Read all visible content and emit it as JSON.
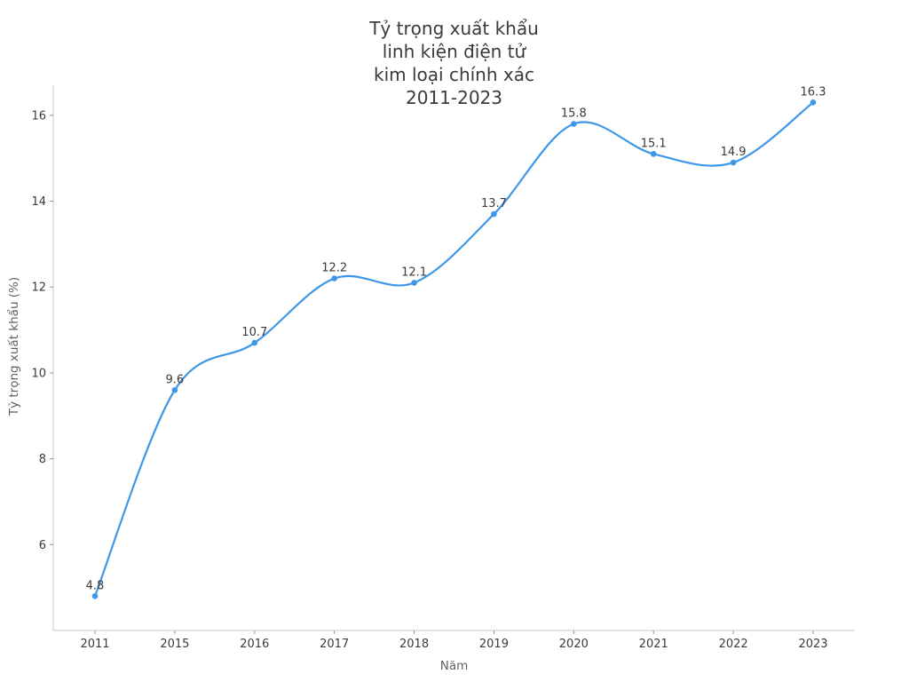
{
  "chart_data": {
    "type": "line",
    "title": "Tỷ trọng xuất khẩu linh kiện điện tử kim loại chính xác 2011-2023",
    "title_lines": [
      "Tỷ trọng xuất khẩu",
      "linh kiện điện tử",
      "kim loại chính xác",
      "2011-2023"
    ],
    "xlabel": "Năm",
    "ylabel": "Tỷ trọng xuất khẩu (%)",
    "categories": [
      "2011",
      "2015",
      "2016",
      "2017",
      "2018",
      "2019",
      "2020",
      "2021",
      "2022",
      "2023"
    ],
    "values": [
      4.8,
      9.6,
      10.7,
      12.2,
      12.1,
      13.7,
      15.8,
      15.1,
      14.9,
      16.3
    ],
    "data_labels": [
      "4.8",
      "9.6",
      "10.7",
      "12.2",
      "12.1",
      "13.7",
      "15.8",
      "15.1",
      "14.9",
      "16.3"
    ],
    "y_ticks": [
      6,
      8,
      10,
      12,
      14,
      16
    ],
    "ylim": [
      4.0,
      16.7
    ],
    "smooth": true,
    "grid": false,
    "legend": null,
    "colors": {
      "line": "#3f97e8",
      "marker": "#3f97e8",
      "text": "#3a3a3a",
      "axis_label": "#606060",
      "spine": "#c9c9c9",
      "tick": "#949494"
    }
  }
}
